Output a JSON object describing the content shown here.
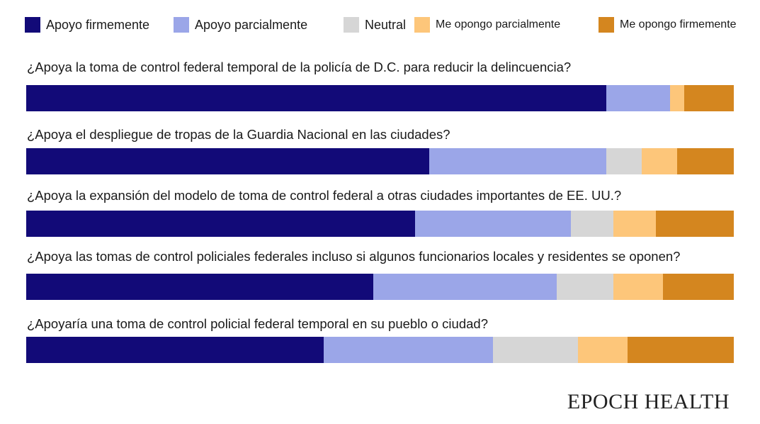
{
  "legend": {
    "items": [
      {
        "label": "Apoyo firmemente",
        "color": "#120a78"
      },
      {
        "label": "Apoyo parcialmente",
        "color": "#9ba6e8"
      },
      {
        "label": "Neutral",
        "color": "#d6d6d6"
      },
      {
        "label": "Me opongo parcialmente",
        "color": "#fdc67a"
      },
      {
        "label": "Me opongo firmemente",
        "color": "#d4861f"
      }
    ]
  },
  "chart_data": {
    "type": "bar",
    "orientation": "horizontal-stacked-100",
    "categories": [
      "¿Apoya la toma de control federal temporal de la policía de D.C. para reducir la delincuencia?",
      "¿Apoya el despliegue de tropas de la Guardia Nacional en las ciudades?",
      "¿Apoya la expansión del modelo de toma de control federal a otras ciudades importantes de EE. UU.?",
      "¿Apoya las tomas de control policiales federales incluso si algunos funcionarios locales y residentes se oponen?",
      "¿Apoyaría una toma de control policial federal temporal en su pueblo o ciudad?"
    ],
    "series": [
      {
        "name": "Apoyo firmemente",
        "color": "#120a78",
        "values": [
          82,
          57,
          55,
          49,
          42
        ]
      },
      {
        "name": "Apoyo parcialmente",
        "color": "#9ba6e8",
        "values": [
          9,
          25,
          22,
          26,
          24
        ]
      },
      {
        "name": "Neutral",
        "color": "#d6d6d6",
        "values": [
          0,
          5,
          6,
          8,
          12
        ]
      },
      {
        "name": "Me opongo parcialmente",
        "color": "#fdc67a",
        "values": [
          2,
          5,
          6,
          7,
          7
        ]
      },
      {
        "name": "Me opongo firmemente",
        "color": "#d4861f",
        "values": [
          7,
          8,
          11,
          10,
          15
        ]
      }
    ],
    "xlim": [
      0,
      100
    ],
    "legend_position": "top"
  },
  "brand": {
    "text": "EPOCH HEALTH"
  }
}
